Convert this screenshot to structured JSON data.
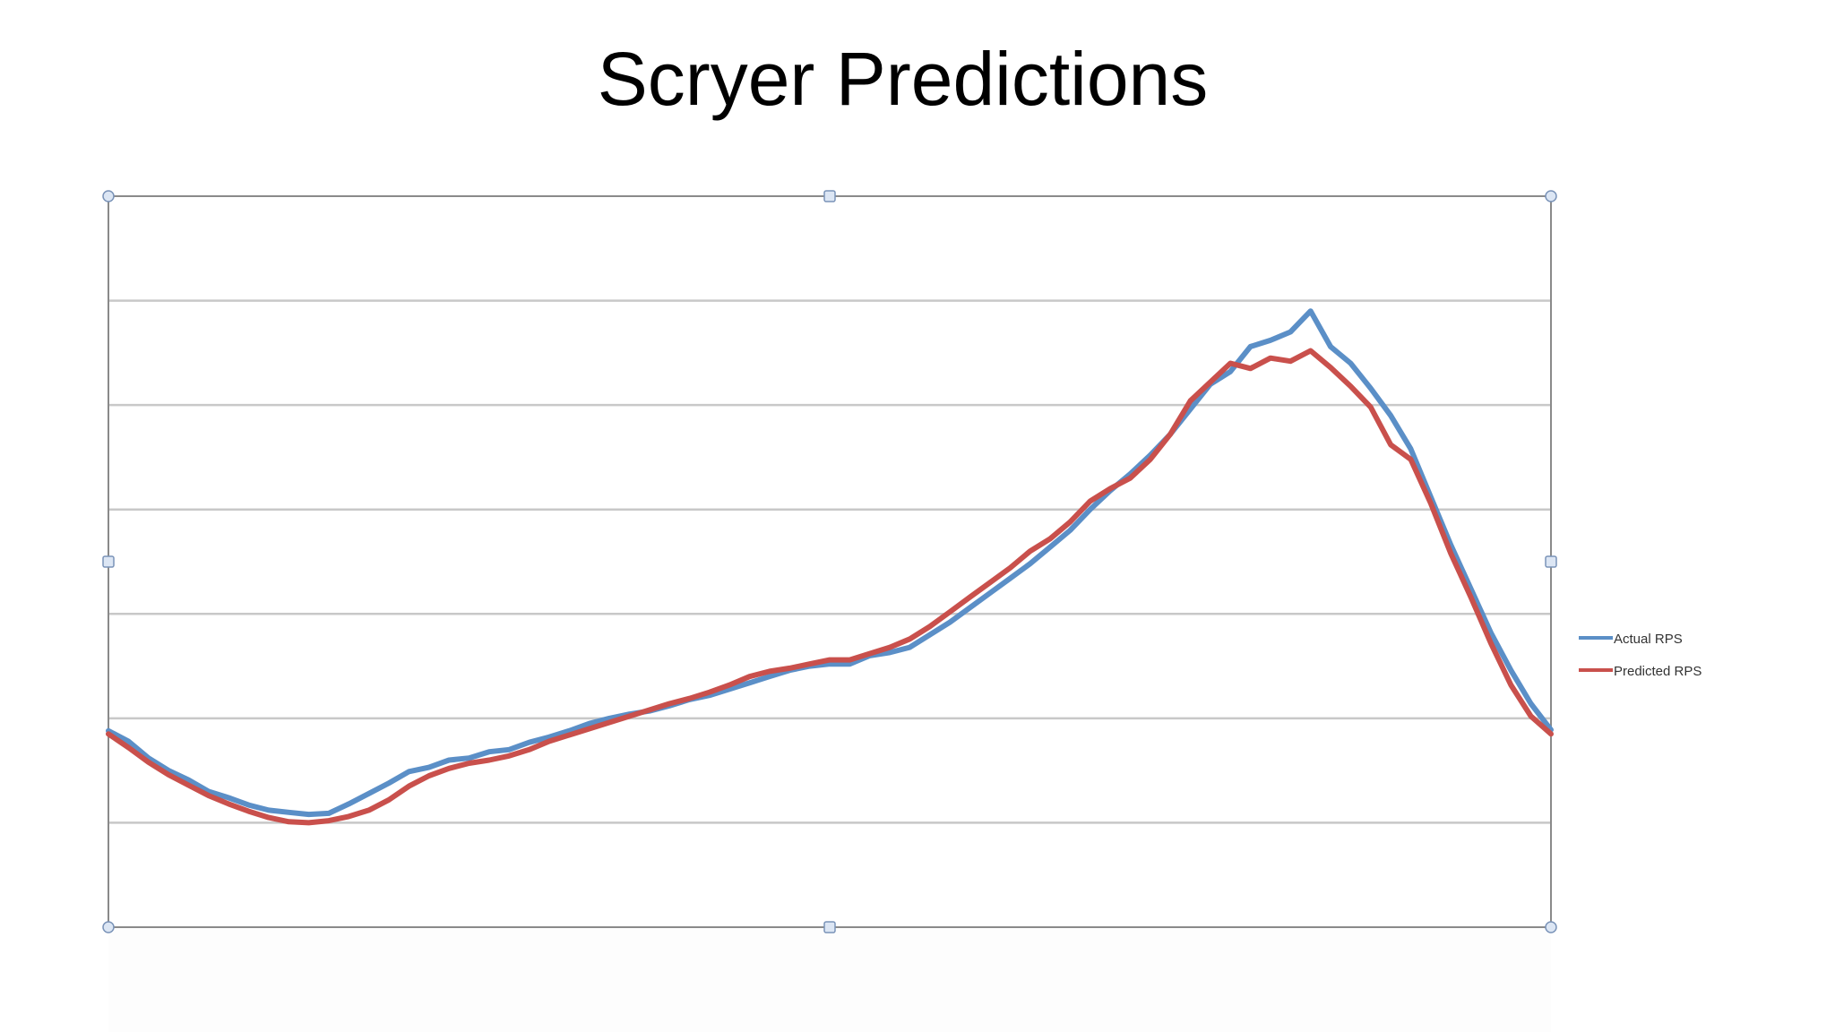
{
  "slide": {
    "title": "Scryer Predictions"
  },
  "chart_data": {
    "type": "line",
    "title": "Scryer Predictions",
    "xlabel": "",
    "ylabel": "",
    "ylim": [
      0,
      7
    ],
    "grid": true,
    "legend_placement": "right",
    "series": [
      {
        "name": "Actual RPS",
        "color": "#5b8fc7",
        "points": [
          [
            0,
            1.88
          ],
          [
            1,
            1.78
          ],
          [
            2,
            1.62
          ],
          [
            3,
            1.5
          ],
          [
            4,
            1.41
          ],
          [
            5,
            1.3
          ],
          [
            6,
            1.24
          ],
          [
            7,
            1.17
          ],
          [
            8,
            1.12
          ],
          [
            9,
            1.1
          ],
          [
            10,
            1.08
          ],
          [
            11,
            1.09
          ],
          [
            12,
            1.18
          ],
          [
            13,
            1.28
          ],
          [
            14,
            1.38
          ],
          [
            15,
            1.49
          ],
          [
            16,
            1.53
          ],
          [
            17,
            1.6
          ],
          [
            18,
            1.62
          ],
          [
            19,
            1.68
          ],
          [
            20,
            1.7
          ],
          [
            21,
            1.77
          ],
          [
            22,
            1.82
          ],
          [
            23,
            1.88
          ],
          [
            24,
            1.95
          ],
          [
            25,
            2.0
          ],
          [
            26,
            2.04
          ],
          [
            27,
            2.07
          ],
          [
            28,
            2.12
          ],
          [
            29,
            2.18
          ],
          [
            30,
            2.22
          ],
          [
            31,
            2.28
          ],
          [
            32,
            2.34
          ],
          [
            33,
            2.4
          ],
          [
            34,
            2.46
          ],
          [
            35,
            2.5
          ],
          [
            36,
            2.52
          ],
          [
            37,
            2.52
          ],
          [
            38,
            2.6
          ],
          [
            39,
            2.63
          ],
          [
            40,
            2.68
          ],
          [
            41,
            2.8
          ],
          [
            42,
            2.92
          ],
          [
            43,
            3.06
          ],
          [
            44,
            3.2
          ],
          [
            45,
            3.34
          ],
          [
            46,
            3.48
          ],
          [
            47,
            3.64
          ],
          [
            48,
            3.8
          ],
          [
            49,
            4.0
          ],
          [
            50,
            4.18
          ],
          [
            51,
            4.34
          ],
          [
            52,
            4.52
          ],
          [
            53,
            4.72
          ],
          [
            54,
            4.96
          ],
          [
            55,
            5.2
          ],
          [
            56,
            5.32
          ],
          [
            57,
            5.56
          ],
          [
            58,
            5.62
          ],
          [
            59,
            5.7
          ],
          [
            60,
            5.9
          ],
          [
            61,
            5.56
          ],
          [
            62,
            5.4
          ],
          [
            63,
            5.16
          ],
          [
            64,
            4.9
          ],
          [
            65,
            4.58
          ],
          [
            66,
            4.12
          ],
          [
            67,
            3.66
          ],
          [
            68,
            3.24
          ],
          [
            69,
            2.82
          ],
          [
            70,
            2.46
          ],
          [
            71,
            2.14
          ],
          [
            72,
            1.89
          ]
        ]
      },
      {
        "name": "Predicted RPS",
        "color": "#c9504c",
        "points": [
          [
            0,
            1.85
          ],
          [
            1,
            1.72
          ],
          [
            2,
            1.58
          ],
          [
            3,
            1.46
          ],
          [
            4,
            1.36
          ],
          [
            5,
            1.26
          ],
          [
            6,
            1.18
          ],
          [
            7,
            1.11
          ],
          [
            8,
            1.05
          ],
          [
            9,
            1.01
          ],
          [
            10,
            1.0
          ],
          [
            11,
            1.02
          ],
          [
            12,
            1.06
          ],
          [
            13,
            1.12
          ],
          [
            14,
            1.22
          ],
          [
            15,
            1.35
          ],
          [
            16,
            1.45
          ],
          [
            17,
            1.52
          ],
          [
            18,
            1.57
          ],
          [
            19,
            1.6
          ],
          [
            20,
            1.64
          ],
          [
            21,
            1.7
          ],
          [
            22,
            1.78
          ],
          [
            23,
            1.84
          ],
          [
            24,
            1.9
          ],
          [
            25,
            1.96
          ],
          [
            26,
            2.02
          ],
          [
            27,
            2.08
          ],
          [
            28,
            2.14
          ],
          [
            29,
            2.19
          ],
          [
            30,
            2.25
          ],
          [
            31,
            2.32
          ],
          [
            32,
            2.4
          ],
          [
            33,
            2.45
          ],
          [
            34,
            2.48
          ],
          [
            35,
            2.52
          ],
          [
            36,
            2.56
          ],
          [
            37,
            2.56
          ],
          [
            38,
            2.62
          ],
          [
            39,
            2.68
          ],
          [
            40,
            2.76
          ],
          [
            41,
            2.88
          ],
          [
            42,
            3.02
          ],
          [
            43,
            3.16
          ],
          [
            44,
            3.3
          ],
          [
            45,
            3.44
          ],
          [
            46,
            3.6
          ],
          [
            47,
            3.72
          ],
          [
            48,
            3.88
          ],
          [
            49,
            4.08
          ],
          [
            50,
            4.2
          ],
          [
            51,
            4.3
          ],
          [
            52,
            4.48
          ],
          [
            53,
            4.72
          ],
          [
            54,
            5.04
          ],
          [
            55,
            5.22
          ],
          [
            56,
            5.4
          ],
          [
            57,
            5.35
          ],
          [
            58,
            5.45
          ],
          [
            59,
            5.42
          ],
          [
            60,
            5.52
          ],
          [
            61,
            5.36
          ],
          [
            62,
            5.18
          ],
          [
            63,
            4.98
          ],
          [
            64,
            4.62
          ],
          [
            65,
            4.48
          ],
          [
            66,
            4.06
          ],
          [
            67,
            3.58
          ],
          [
            68,
            3.16
          ],
          [
            69,
            2.72
          ],
          [
            70,
            2.32
          ],
          [
            71,
            2.02
          ],
          [
            72,
            1.85
          ]
        ]
      }
    ],
    "colors": {
      "actual": "#5b8fc7",
      "predicted": "#c9504c",
      "grid": "#c8c8c8",
      "frame": "#8a8a8a",
      "handle_fill": "#dce6f4",
      "handle_stroke": "#7a93b8"
    }
  }
}
